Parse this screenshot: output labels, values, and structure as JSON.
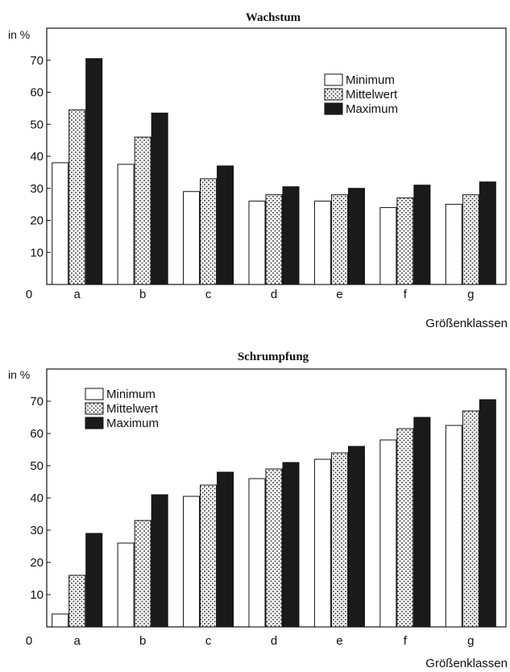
{
  "chart_data": [
    {
      "type": "bar",
      "title": "Wachstum",
      "ylabel": "in %",
      "xlabel": "Größenklassen",
      "origin_label": "0",
      "categories": [
        "a",
        "b",
        "c",
        "d",
        "e",
        "f",
        "g"
      ],
      "series": [
        {
          "name": "Minimum",
          "values": [
            38,
            37.5,
            29,
            26,
            26,
            24,
            25
          ],
          "fill": "white"
        },
        {
          "name": "Mittelwert",
          "values": [
            54.5,
            46,
            33,
            28,
            28,
            27,
            28
          ],
          "fill": "dotted"
        },
        {
          "name": "Maximum",
          "values": [
            70.5,
            53.5,
            37,
            30.5,
            30,
            31,
            32
          ],
          "fill": "dark"
        }
      ],
      "yticks": [
        10,
        20,
        30,
        40,
        50,
        60,
        70
      ],
      "ylim": [
        0,
        80
      ],
      "legend_position": "right",
      "grid": false
    },
    {
      "type": "bar",
      "title": "Schrumpfung",
      "ylabel": "in %",
      "xlabel": "Größenklassen",
      "origin_label": "0",
      "categories": [
        "a",
        "b",
        "c",
        "d",
        "e",
        "f",
        "g"
      ],
      "series": [
        {
          "name": "Minimum",
          "values": [
            4,
            26,
            40.5,
            46,
            52,
            58,
            62.5
          ],
          "fill": "white"
        },
        {
          "name": "Mittelwert",
          "values": [
            16,
            33,
            44,
            49,
            54,
            61.5,
            67
          ],
          "fill": "dotted"
        },
        {
          "name": "Maximum",
          "values": [
            29,
            41,
            48,
            51,
            56,
            65,
            70.5
          ],
          "fill": "dark"
        }
      ],
      "yticks": [
        10,
        20,
        30,
        40,
        50,
        60,
        70
      ],
      "ylim": [
        0,
        80
      ],
      "legend_position": "top-left",
      "grid": false
    }
  ],
  "colors": {
    "ink": "#111111",
    "dark_bar": "#1a1a1a",
    "dot": "#555555"
  }
}
